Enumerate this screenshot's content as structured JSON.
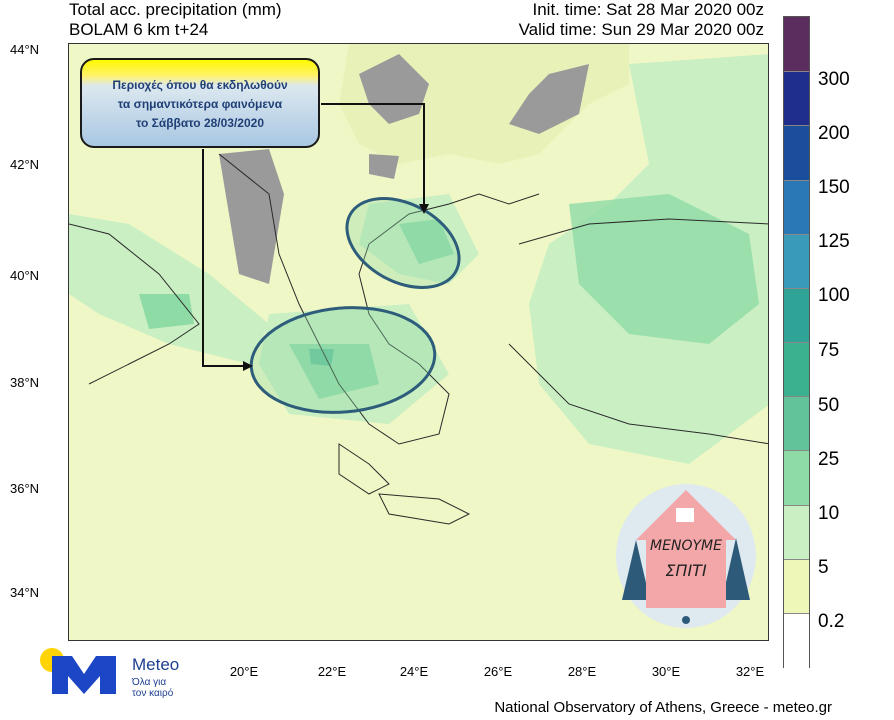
{
  "header": {
    "title_line1": "Total acc. precipitation (mm)",
    "title_line2": "BOLAM 6 km t+24",
    "init_time": "Init. time: Sat 28 Mar 2020 00z",
    "valid_time": "Valid time: Sun 29 Mar 2020 00z"
  },
  "axes": {
    "lat_labels": [
      "44°N",
      "42°N",
      "40°N",
      "38°N",
      "36°N",
      "34°N"
    ],
    "lon_labels": [
      "20°E",
      "22°E",
      "24°E",
      "26°E",
      "28°E",
      "30°E",
      "32°E"
    ]
  },
  "colorbar": {
    "labels": [
      "300",
      "200",
      "150",
      "125",
      "100",
      "75",
      "50",
      "25",
      "10",
      "5",
      "0.2"
    ],
    "colors": [
      "#5b2d5e",
      "#1f2d8c",
      "#1a4d9b",
      "#2a78b5",
      "#3a9bb8",
      "#2fa396",
      "#3cb18f",
      "#62c29a",
      "#8fdba6",
      "#c9efc2",
      "#eef7b8",
      "#ffffff"
    ]
  },
  "callout": {
    "line1": "Περιοχές όπου θα εκδηλωθούν",
    "line2": "τα σημαντικότερα φαινόμενα",
    "line3": "το Σάββατο 28/03/2020"
  },
  "logo": {
    "name": "Meteo",
    "tagline1": "Όλα για",
    "tagline2": "τον καιρό"
  },
  "stay_home": {
    "line1": "ΜΕΝΟΥΜΕ",
    "line2": "ΣΠΙΤΙ"
  },
  "footer": "National Observatory of Athens, Greece - meteo.gr",
  "colors": {
    "land_low": "#f0f7c6",
    "rain_light": "#c9efc2",
    "rain_moderate": "#8fdba6",
    "rain_heavy": "#62c29a",
    "no_data": "#9a9a9a",
    "ellipse": "#2d5d7b"
  }
}
